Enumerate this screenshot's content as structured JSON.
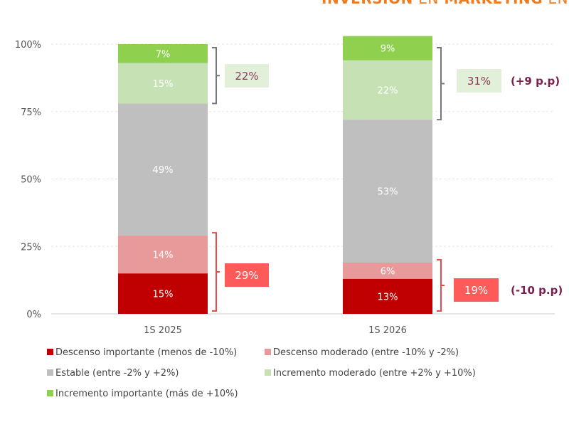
{
  "header": {
    "title_parts": [
      "INVERSIÓN",
      "EN",
      "MARKETING",
      "EN"
    ]
  },
  "chart_data": {
    "type": "bar",
    "stacked": true,
    "categories": [
      "1S 2025",
      "1S 2026"
    ],
    "ylim": [
      0,
      100
    ],
    "yticks": [
      "0%",
      "25%",
      "50%",
      "75%",
      "100%"
    ],
    "grid": true,
    "legend_placement": "bottom",
    "series": [
      {
        "name": "Descenso importante (menos de -10%)",
        "color": "#c00000",
        "values": [
          15,
          13
        ],
        "labels": [
          "15%",
          "13%"
        ]
      },
      {
        "name": "Descenso moderado (entre -10% y -2%)",
        "color": "#e89a9a",
        "values": [
          14,
          6
        ],
        "labels": [
          "14%",
          "6%"
        ]
      },
      {
        "name": "Estable (entre -2% y +2%)",
        "color": "#bfbfbf",
        "values": [
          49,
          53
        ],
        "labels": [
          "49%",
          "53%"
        ]
      },
      {
        "name": "Incremento moderado (entre +2% y +10%)",
        "color": "#c6e2b5",
        "values": [
          15,
          22
        ],
        "labels": [
          "15%",
          "22%"
        ]
      },
      {
        "name": "Incremento importante (más de +10%)",
        "color": "#8fd14f",
        "values": [
          7,
          9
        ],
        "labels": [
          "7%",
          "9%"
        ]
      }
    ],
    "annotations": {
      "increase_totals": [
        "22%",
        "31%"
      ],
      "decrease_totals": [
        "29%",
        "19%"
      ],
      "increase_change": "(+9 p.p)",
      "decrease_change": "(-10 p.p)"
    }
  }
}
